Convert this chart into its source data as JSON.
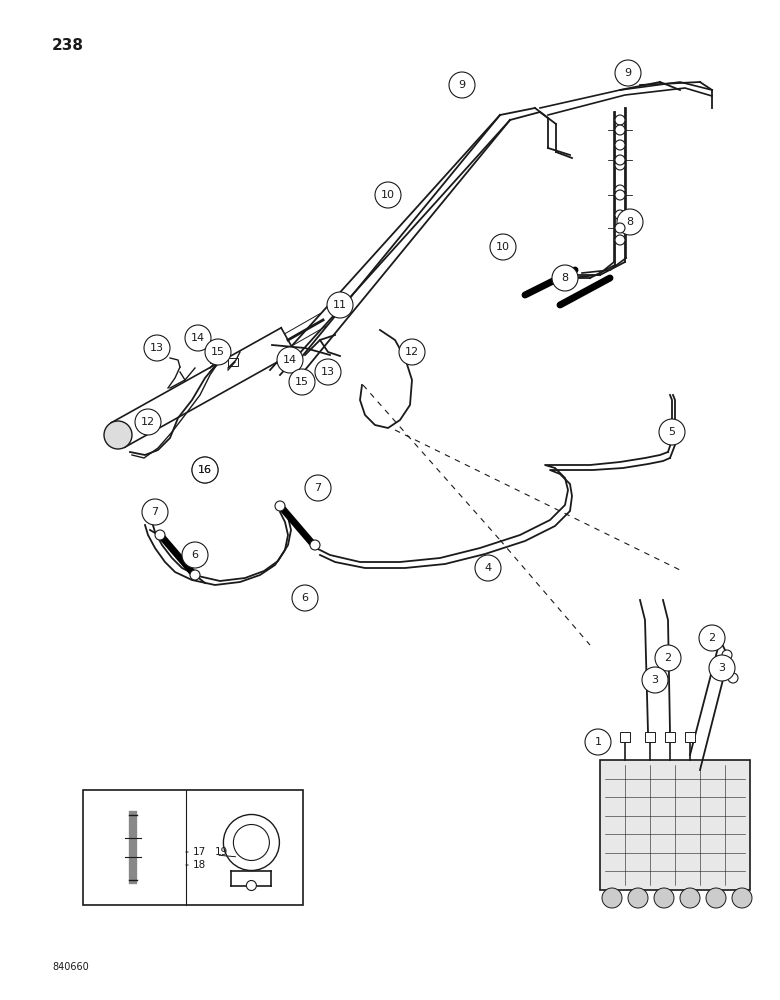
{
  "page_number": "238",
  "footer_text": "840660",
  "bg": "#ffffff",
  "lc": "#1a1a1a",
  "figsize": [
    7.8,
    10.0
  ],
  "dpi": 100
}
